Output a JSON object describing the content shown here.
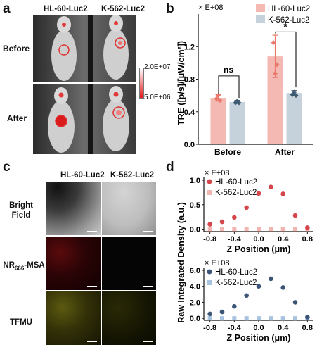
{
  "panel_a": {
    "label": "a",
    "col_headers": [
      "HL-60-Luc2",
      "K-562-Luc2"
    ],
    "row_labels": [
      "Before",
      "After"
    ],
    "colorbar": {
      "max": "2.0E+07",
      "min": "5.0E+06"
    }
  },
  "panel_c": {
    "label": "c",
    "col_headers": [
      "HL-60-Luc2",
      "K-562-Luc2"
    ],
    "row_labels": {
      "bright": "Bright Field",
      "nr_prefix": "NR",
      "nr_sub": "666",
      "nr_suffix": "-MSA",
      "tfmu": "TFMU"
    }
  },
  "panel_b_label": "b",
  "panel_d_label": "d",
  "chart_data": [
    {
      "type": "bar",
      "multiplier": "× E+08",
      "ylabel": "TRE ([p/s]/[μW/cm²])",
      "categories": [
        "Before",
        "After"
      ],
      "ylim": [
        0,
        1.6
      ],
      "yticks": [
        "0.0",
        "0.4",
        "0.8",
        "1.2"
      ],
      "legend_position": "top-right",
      "series": [
        {
          "name": "HL-60-Luc2",
          "values": [
            0.57,
            1.08
          ],
          "errors": [
            0.04,
            0.26
          ],
          "points": [
            [
              0.56,
              0.6,
              0.54
            ],
            [
              1.25,
              0.87,
              0.98
            ]
          ],
          "color": "#f3b9b2",
          "dark": "#e8796c"
        },
        {
          "name": "K-562-Luc2",
          "values": [
            0.52,
            0.63
          ],
          "errors": [
            0.02,
            0.03
          ],
          "points": [
            [
              0.51,
              0.53,
              0.51
            ],
            [
              0.61,
              0.64,
              0.6
            ]
          ],
          "color": "#c5d2dc",
          "dark": "#3f5a73"
        }
      ],
      "annotations": [
        {
          "text": "ns",
          "category": "Before"
        },
        {
          "text": "*",
          "category": "After"
        }
      ]
    },
    {
      "type": "scatter",
      "multiplier": "× E+08",
      "ylabel": "Raw Integrated Density (a.u.)",
      "xlabel": "Z Position (μm)",
      "xlim": [
        -0.9,
        0.9
      ],
      "ylim": [
        -0.05,
        1.0
      ],
      "xticks": [
        "-0.8",
        "-0.4",
        "0.0",
        "0.4",
        "0.8"
      ],
      "yticks": [
        "0.0",
        "0.5",
        "1.0"
      ],
      "series": [
        {
          "name": "HL-60-Luc2",
          "color": "#d5454a",
          "x": [
            -0.8,
            -0.6,
            -0.4,
            -0.2,
            0.0,
            0.2,
            0.4,
            0.6,
            0.8
          ],
          "y": [
            0.1,
            0.15,
            0.24,
            0.44,
            0.73,
            0.86,
            0.72,
            0.28,
            0.03
          ]
        },
        {
          "name": "K-562-Luc2",
          "color": "#f2b6b2",
          "x": [
            -0.8,
            -0.6,
            -0.4,
            -0.2,
            0.0,
            0.2,
            0.4,
            0.6,
            0.8
          ],
          "y": [
            0.0,
            0.0,
            0.0,
            0.0,
            0.0,
            0.0,
            0.0,
            0.0,
            0.0
          ]
        }
      ]
    },
    {
      "type": "scatter",
      "multiplier": "× E+08",
      "xlabel": "Z Position (μm)",
      "xlim": [
        -0.9,
        0.9
      ],
      "ylim": [
        -0.25,
        6.0
      ],
      "xticks": [
        "-0.8",
        "-0.4",
        "0.0",
        "0.4",
        "0.8"
      ],
      "yticks": [
        "0.0",
        "2.0",
        "4.0",
        "6.0"
      ],
      "series": [
        {
          "name": "HL-60-Luc2",
          "color": "#3c5577",
          "x": [
            -0.8,
            -0.6,
            -0.4,
            -0.2,
            0.0,
            0.2,
            0.4,
            0.6,
            0.8
          ],
          "y": [
            0.55,
            0.8,
            1.5,
            2.85,
            4.0,
            4.95,
            3.85,
            2.0,
            0.15
          ]
        },
        {
          "name": "K-562-Luc2",
          "color": "#a7c3e0",
          "x": [
            -0.8,
            -0.6,
            -0.4,
            -0.2,
            0.0,
            0.2,
            0.4,
            0.6,
            0.8
          ],
          "y": [
            0.0,
            0.0,
            0.0,
            0.0,
            0.0,
            0.0,
            0.0,
            0.0,
            0.0
          ]
        }
      ]
    }
  ]
}
